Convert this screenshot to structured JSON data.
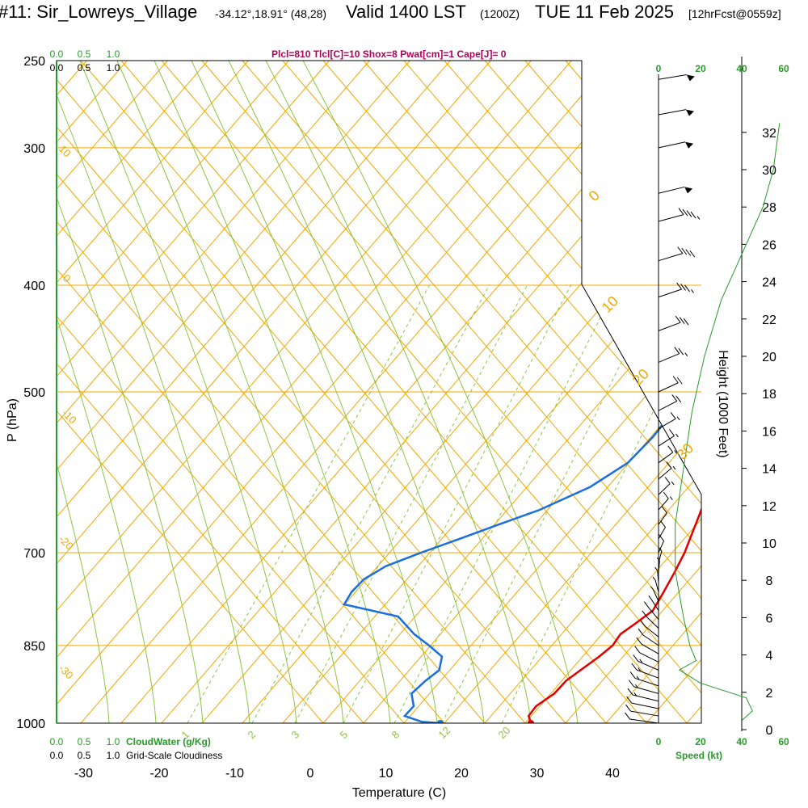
{
  "header": {
    "station": "#11: Sir_Lowreys_Village",
    "coords": "-34.12°,18.91° (48,28)",
    "valid": "Valid 1400 LST",
    "zulu": "(1200Z)",
    "date": "TUE 11 Feb 2025",
    "forecast": "[12hrFcst@0559z]"
  },
  "stats_line": "Plcl=810 Tlcl[C]=10 Shox=8 Pwat[cm]=1 Cape[J]= 0",
  "colors": {
    "temperature": "#e00000",
    "dewpoint": "#1a6fe0",
    "isobar_isotherm": "#f0a800",
    "mixing_ratio": "#8cc63f",
    "moist_adiabat": "#8cc63f",
    "height_wind": "#2a9a2a",
    "stats": "#b0005a"
  },
  "chart_data": {
    "type": "line",
    "title": "Skew-T sounding",
    "xlabel": "Temperature (C)",
    "ylabel": "P (hPa)",
    "right_label": "Height (1000 Feet)",
    "x_ticks": [
      "-30",
      "-20",
      "-10",
      "0",
      "10",
      "20",
      "30",
      "40"
    ],
    "x_tick_values": [
      -30,
      -20,
      -10,
      0,
      10,
      20,
      30,
      40
    ],
    "pressure_ticks": [
      "250",
      "300",
      "400",
      "500",
      "700",
      "850",
      "1000"
    ],
    "pressure_tick_values": [
      250,
      300,
      400,
      500,
      700,
      850,
      1000
    ],
    "height_ticks": [
      "0",
      "2",
      "4",
      "6",
      "8",
      "10",
      "12",
      "14",
      "16",
      "18",
      "20",
      "22",
      "24",
      "26",
      "28",
      "30",
      "32"
    ],
    "speed_ticks": [
      "0",
      "20",
      "40",
      "60"
    ],
    "speed_label": "Speed (kt)",
    "cloud_scale_top_green": [
      "0.0",
      "0.5",
      "1.0"
    ],
    "cloud_scale_top_black": [
      "0.0",
      "0.5",
      "1.0"
    ],
    "cloudwater_label": "CloudWater (g/Kg)",
    "cloudiness_label": "Grid-Scale Cloudiness",
    "theta_labels": [
      "-10",
      "0",
      "10",
      "20",
      "30"
    ],
    "theta_e_labels": [
      "10",
      "0",
      "-10",
      "-20",
      "-30"
    ],
    "mixing_ratio_labels": [
      "1",
      "2",
      "3",
      "5",
      "8",
      "12",
      "20"
    ],
    "series": [
      {
        "name": "Temperature",
        "pressure": [
          1000,
          985,
          965,
          940,
          915,
          895,
          870,
          850,
          830,
          810,
          790,
          760,
          730,
          700,
          670,
          640,
          610,
          580,
          550,
          520,
          500,
          470,
          440,
          420,
          400,
          380,
          360,
          340,
          320,
          300,
          285,
          270,
          260
        ],
        "temperature": [
          29.2,
          27.8,
          27.3,
          27.8,
          27.4,
          27.7,
          28.1,
          28.2,
          27.5,
          27.9,
          28.2,
          26.8,
          25.3,
          23.6,
          21.5,
          19.3,
          17.0,
          14.6,
          12.0,
          9.4,
          7.6,
          4.8,
          1.8,
          -0.2,
          -2.3,
          -4.4,
          -6.6,
          -8.8,
          -11.3,
          -13.9,
          -16.0,
          -18.0,
          -19.5
        ]
      },
      {
        "name": "Dewpoint",
        "pressure": [
          1000,
          997,
          985,
          965,
          940,
          915,
          895,
          870,
          850,
          830,
          800,
          780,
          760,
          740,
          720,
          700,
          680,
          660,
          640,
          610,
          580,
          550,
          520,
          505,
          490,
          470,
          450,
          430,
          410,
          390,
          370,
          350,
          335,
          320,
          305,
          295,
          283,
          270,
          260
        ],
        "dewpoint": [
          17.2,
          14.5,
          11.4,
          11.1,
          8.9,
          8.8,
          9.0,
          7.3,
          3.9,
          0.2,
          -4.6,
          -13.6,
          -14.5,
          -14.8,
          -13.9,
          -11.3,
          -8.3,
          -5.3,
          -2.1,
          1.1,
          2.4,
          1.8,
          0.6,
          1.0,
          3.6,
          7.3,
          10.8,
          14.6,
          18.5,
          21.0,
          19.8,
          20.6,
          25.2,
          27.9,
          31.9,
          34.4,
          37.9,
          39.3,
          41.0
        ]
      }
    ],
    "wind_pressures": [
      1000,
      985,
      970,
      955,
      940,
      925,
      910,
      895,
      880,
      865,
      850,
      835,
      820,
      805,
      790,
      775,
      760,
      745,
      730,
      715,
      700,
      680,
      660,
      640,
      620,
      600,
      580,
      560,
      540,
      520,
      500,
      470,
      440,
      410,
      380,
      350,
      330,
      300,
      280,
      260
    ],
    "wind_speeds_kt": [
      10,
      12,
      14,
      15,
      16,
      16,
      15,
      15,
      14,
      13,
      12,
      12,
      11,
      10,
      8,
      7,
      6,
      6,
      7,
      8,
      10,
      12,
      14,
      15,
      16,
      16,
      17,
      18,
      18,
      20,
      22,
      25,
      30,
      35,
      40,
      45,
      50,
      55,
      55,
      55
    ],
    "height_profile_kft": [
      0.5,
      1.0,
      1.7,
      2.5,
      3.2,
      3.7,
      4.5,
      6.0,
      8.5,
      11,
      14,
      17,
      20,
      23,
      26,
      28,
      30,
      32.5
    ],
    "height_profile_speed": [
      40,
      45,
      42,
      20,
      10,
      18,
      15,
      12,
      8,
      8,
      12,
      16,
      22,
      30,
      42,
      50,
      55,
      58
    ]
  }
}
